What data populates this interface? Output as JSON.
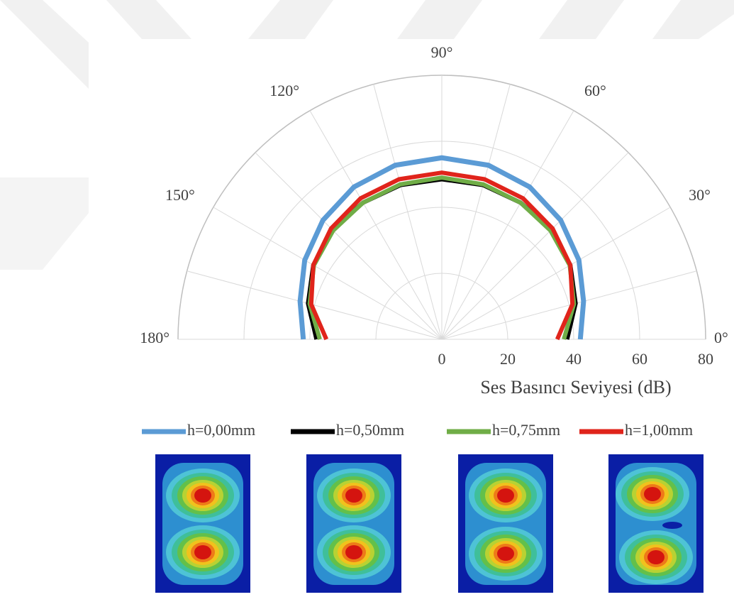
{
  "chart_data": {
    "type": "polar-line",
    "half": true,
    "theta": [
      0,
      15,
      30,
      45,
      60,
      75,
      90,
      105,
      120,
      135,
      150,
      165,
      180
    ],
    "series": [
      {
        "name": "h=0,00mm",
        "color": "#5b9bd5",
        "values": [
          42,
          44.5,
          48,
          51,
          53.3,
          54.6,
          55,
          54.6,
          53.3,
          51,
          48,
          44.5,
          42
        ]
      },
      {
        "name": "h=0,50mm",
        "color": "#000000",
        "values": [
          38,
          42,
          45,
          46.8,
          47.8,
          48.4,
          48.5,
          48.4,
          47.8,
          46.8,
          45,
          42,
          38
        ]
      },
      {
        "name": "h=0,75mm",
        "color": "#70ad47",
        "values": [
          37,
          41.5,
          44.8,
          46.6,
          47.8,
          48.6,
          49,
          48.6,
          47.8,
          46.6,
          44.8,
          41.5,
          37
        ]
      },
      {
        "name": "h=1,00mm",
        "color": "#e0241b",
        "values": [
          35,
          41,
          45,
          47.5,
          49.3,
          50.2,
          50.5,
          50.2,
          49.3,
          47.5,
          45,
          41,
          35
        ]
      }
    ],
    "rlim": [
      0,
      80
    ],
    "rticks": [
      0,
      20,
      40,
      60,
      80
    ],
    "thetaticks": [
      {
        "value": 0,
        "label": "0°"
      },
      {
        "value": 30,
        "label": "30°"
      },
      {
        "value": 60,
        "label": "60°"
      },
      {
        "value": 90,
        "label": "90°"
      },
      {
        "value": 120,
        "label": "120°"
      },
      {
        "value": 150,
        "label": "150°"
      },
      {
        "value": 180,
        "label": "180°"
      }
    ],
    "r_label": "Ses Basıncı Seviyesi (dB)",
    "grid": true,
    "legend": "bottom"
  }
}
